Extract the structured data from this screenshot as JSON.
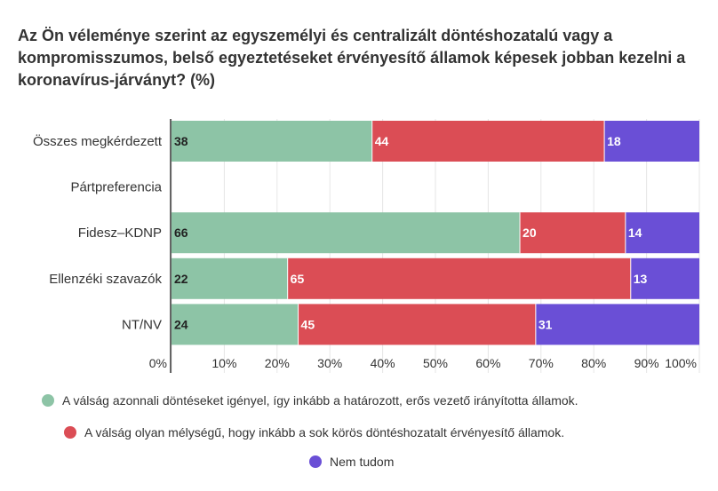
{
  "chart_data": {
    "type": "bar",
    "orientation": "horizontal",
    "stacked": true,
    "title": "Az Ön véleménye szerint az egyszemélyi és centralizált döntéshozatalú vagy a kompromisszumos, belső egyeztetéseket érvényesítő államok képesek jobban kezelni a koronavírus-járványt? (%)",
    "categories": [
      "Összes megkérdezett",
      "Pártpreferencia",
      "Fidesz–KDNP",
      "Ellenzéki szavazók",
      "NT/NV"
    ],
    "series": [
      {
        "name": "A válság azonnali döntéseket igényel, így inkább a határozott, erős vezető irányította államok.",
        "color": "#8dc4a6",
        "label_color": "#222222",
        "values": [
          38,
          null,
          66,
          22,
          24
        ]
      },
      {
        "name": "A válság olyan mélységű, hogy inkább a sok körös döntéshozatalt érvényesítő államok.",
        "color": "#db4d55",
        "label_color": "#ffffff",
        "values": [
          44,
          null,
          20,
          65,
          45
        ]
      },
      {
        "name": "Nem tudom",
        "color": "#6a4fd6",
        "label_color": "#ffffff",
        "values": [
          18,
          null,
          14,
          13,
          31
        ]
      }
    ],
    "xlim": [
      0,
      100
    ],
    "xticks": [
      "0%",
      "10%",
      "20%",
      "30%",
      "40%",
      "50%",
      "60%",
      "70%",
      "80%",
      "90%",
      "100%"
    ],
    "grid": true,
    "legend_position": "bottom"
  }
}
